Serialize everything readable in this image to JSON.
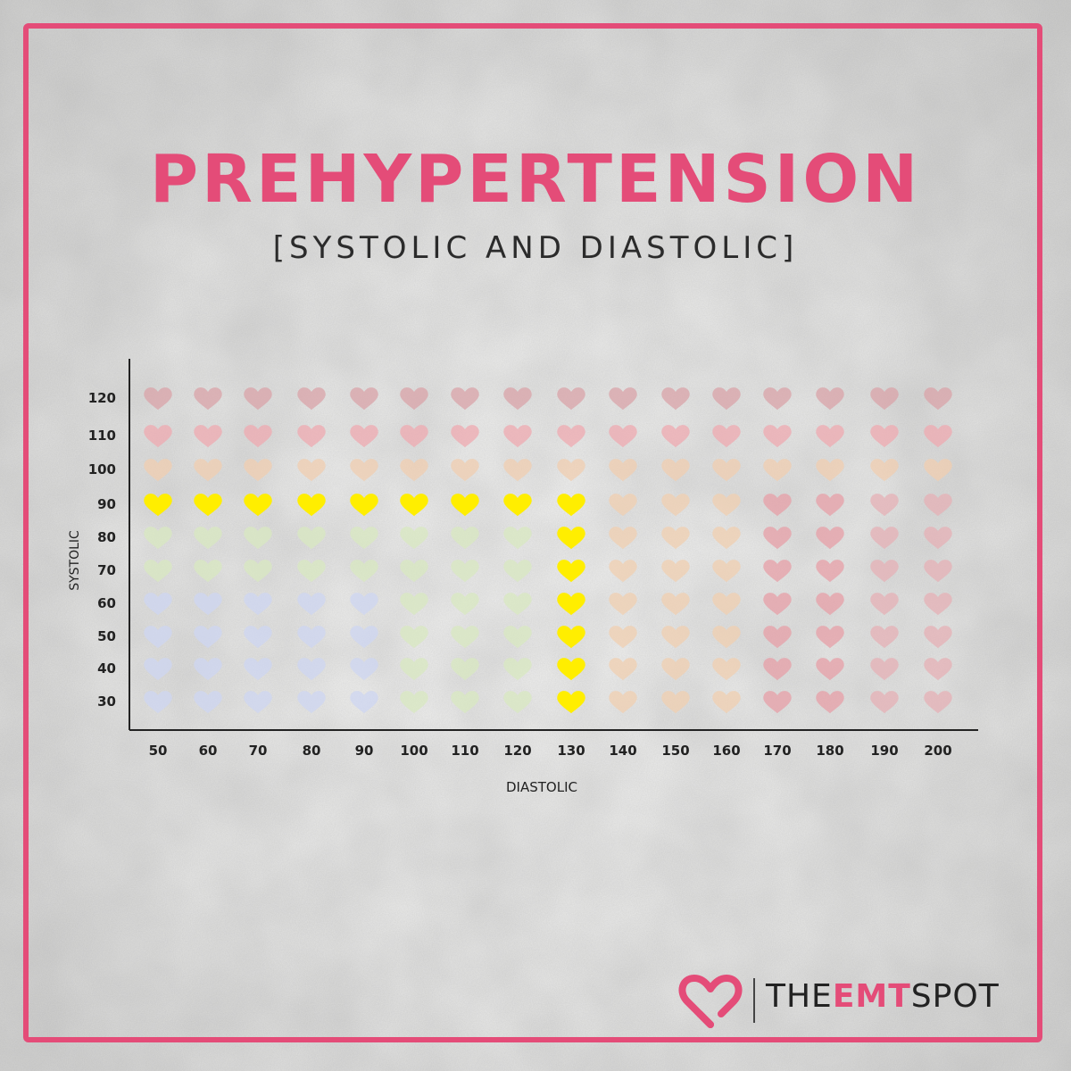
{
  "brand": {
    "pre": "THE",
    "accent": "EMT",
    "post": "SPOT",
    "accent_color": "#e44c78"
  },
  "chart_data": {
    "type": "scatter",
    "title": "PREHYPERTENSION",
    "subtitle": "[SYSTOLIC AND DIASTOLIC]",
    "xlabel": "DIASTOLIC",
    "ylabel": "SYSTOLIC",
    "x_ticks": [
      50,
      60,
      70,
      80,
      90,
      100,
      110,
      120,
      130,
      140,
      150,
      160,
      170,
      180,
      190,
      200
    ],
    "y_ticks": [
      30,
      40,
      50,
      60,
      70,
      80,
      90,
      100,
      110,
      120
    ],
    "marker": "heart",
    "highlight_color": "#ffee00",
    "highlighted_points": [
      {
        "x": 50,
        "y": 90
      },
      {
        "x": 60,
        "y": 90
      },
      {
        "x": 70,
        "y": 90
      },
      {
        "x": 80,
        "y": 90
      },
      {
        "x": 90,
        "y": 90
      },
      {
        "x": 100,
        "y": 90
      },
      {
        "x": 110,
        "y": 90
      },
      {
        "x": 120,
        "y": 90
      },
      {
        "x": 130,
        "y": 90
      },
      {
        "x": 130,
        "y": 80
      },
      {
        "x": 130,
        "y": 70
      },
      {
        "x": 130,
        "y": 60
      },
      {
        "x": 130,
        "y": 50
      },
      {
        "x": 130,
        "y": 40
      },
      {
        "x": 130,
        "y": 30
      }
    ],
    "background_colors": {
      "120": "#d9a3a8",
      "110": "#efaab0",
      "100": "#f0cdb0",
      "low_x_low_y": "#cdd6f2",
      "mid_green": "#d8e8c0",
      "x_140_160": "#f0cfb0",
      "x_170_180": "#e79fa7",
      "x_190_200": "#e6b0b6"
    },
    "grid": false
  }
}
